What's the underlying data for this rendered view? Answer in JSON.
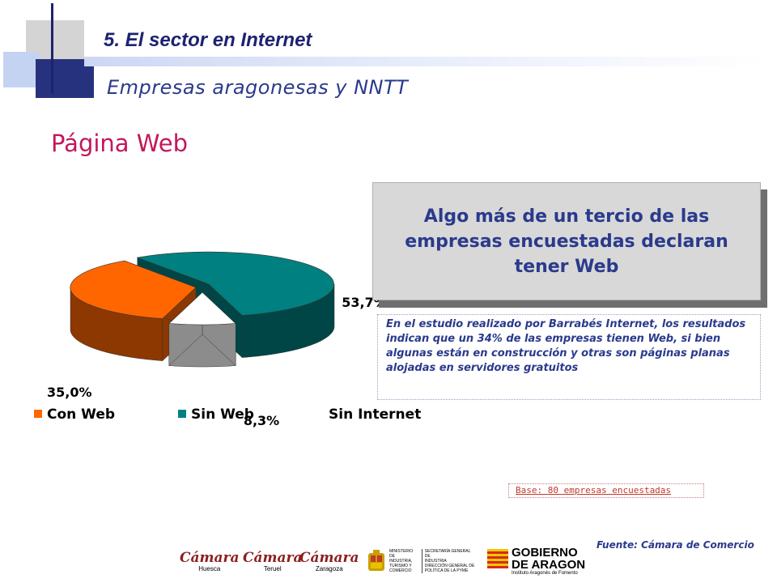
{
  "header": {
    "title": "5. El sector en Internet",
    "subtitle": "Empresas aragonesas y NNTT"
  },
  "section_title": "Página Web",
  "headline": "Algo más de un tercio de las empresas encuestadas declaran tener Web",
  "description": "En el estudio realizado por Barrabés Internet, los resultados indican que un 34% de las empresas tienen Web, si bien algunas están en construcción y otras son páginas planas alojadas en servidores gratuitos",
  "base_note": "Base: 80 empresas encuestadas",
  "source": "Fuente: Cámara de Comercio",
  "chart_data": {
    "type": "pie",
    "title": "",
    "categories": [
      "Con Web",
      "Sin Web",
      "Sin Internet"
    ],
    "values": [
      35.0,
      53.7,
      8.3
    ],
    "labels": [
      "35,0%",
      "53,7%",
      "8,3%"
    ],
    "colors": [
      "#ff6600",
      "#008080",
      "#ffffff"
    ],
    "style": "3d-exploded",
    "legend_position": "bottom"
  },
  "logos": {
    "camara_huesca": {
      "name": "Cámara",
      "city": "Huesca"
    },
    "camara_teruel": {
      "name": "Cámara",
      "city": "Teruel"
    },
    "camara_zaragoza": {
      "name": "Cámara",
      "city": "Zaragoza"
    },
    "ministerio_left": [
      "MINISTERIO",
      "DE INDUSTRIA,",
      "TURISMO Y",
      "COMERCIO"
    ],
    "ministerio_right": [
      "SECRETARÍA GENERAL DE",
      "INDUSTRIA",
      "DIRECCIÓN GENERAL DE",
      "POLÍTICA DE LA PYME"
    ],
    "gobierno": [
      "GOBIERNO",
      "DE ARAGON"
    ],
    "gobierno_sub": "Instituto Aragonés de Fomento"
  }
}
